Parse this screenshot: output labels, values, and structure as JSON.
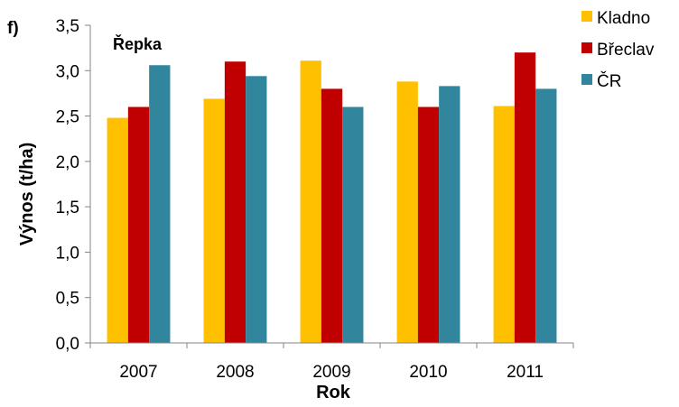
{
  "panel_label": "f)",
  "chart_data": {
    "type": "bar",
    "title": "Řepka",
    "xlabel": "Rok",
    "ylabel": "Výnos (t/ha)",
    "categories": [
      "2007",
      "2008",
      "2009",
      "2010",
      "2011"
    ],
    "series": [
      {
        "name": "Kladno",
        "color": "#FFC000",
        "values": [
          2.48,
          2.69,
          3.11,
          2.88,
          2.61
        ]
      },
      {
        "name": "Břeclav",
        "color": "#C00000",
        "values": [
          2.6,
          3.1,
          2.8,
          2.6,
          3.2
        ]
      },
      {
        "name": "ČR",
        "color": "#31859C",
        "values": [
          3.06,
          2.94,
          2.6,
          2.83,
          2.8
        ]
      }
    ],
    "ylim": [
      0,
      3.5
    ],
    "yticks": [
      "0,0",
      "0,5",
      "1,0",
      "1,5",
      "2,0",
      "2,5",
      "3,0",
      "3,5"
    ],
    "grid": false,
    "legend_position": "right"
  }
}
